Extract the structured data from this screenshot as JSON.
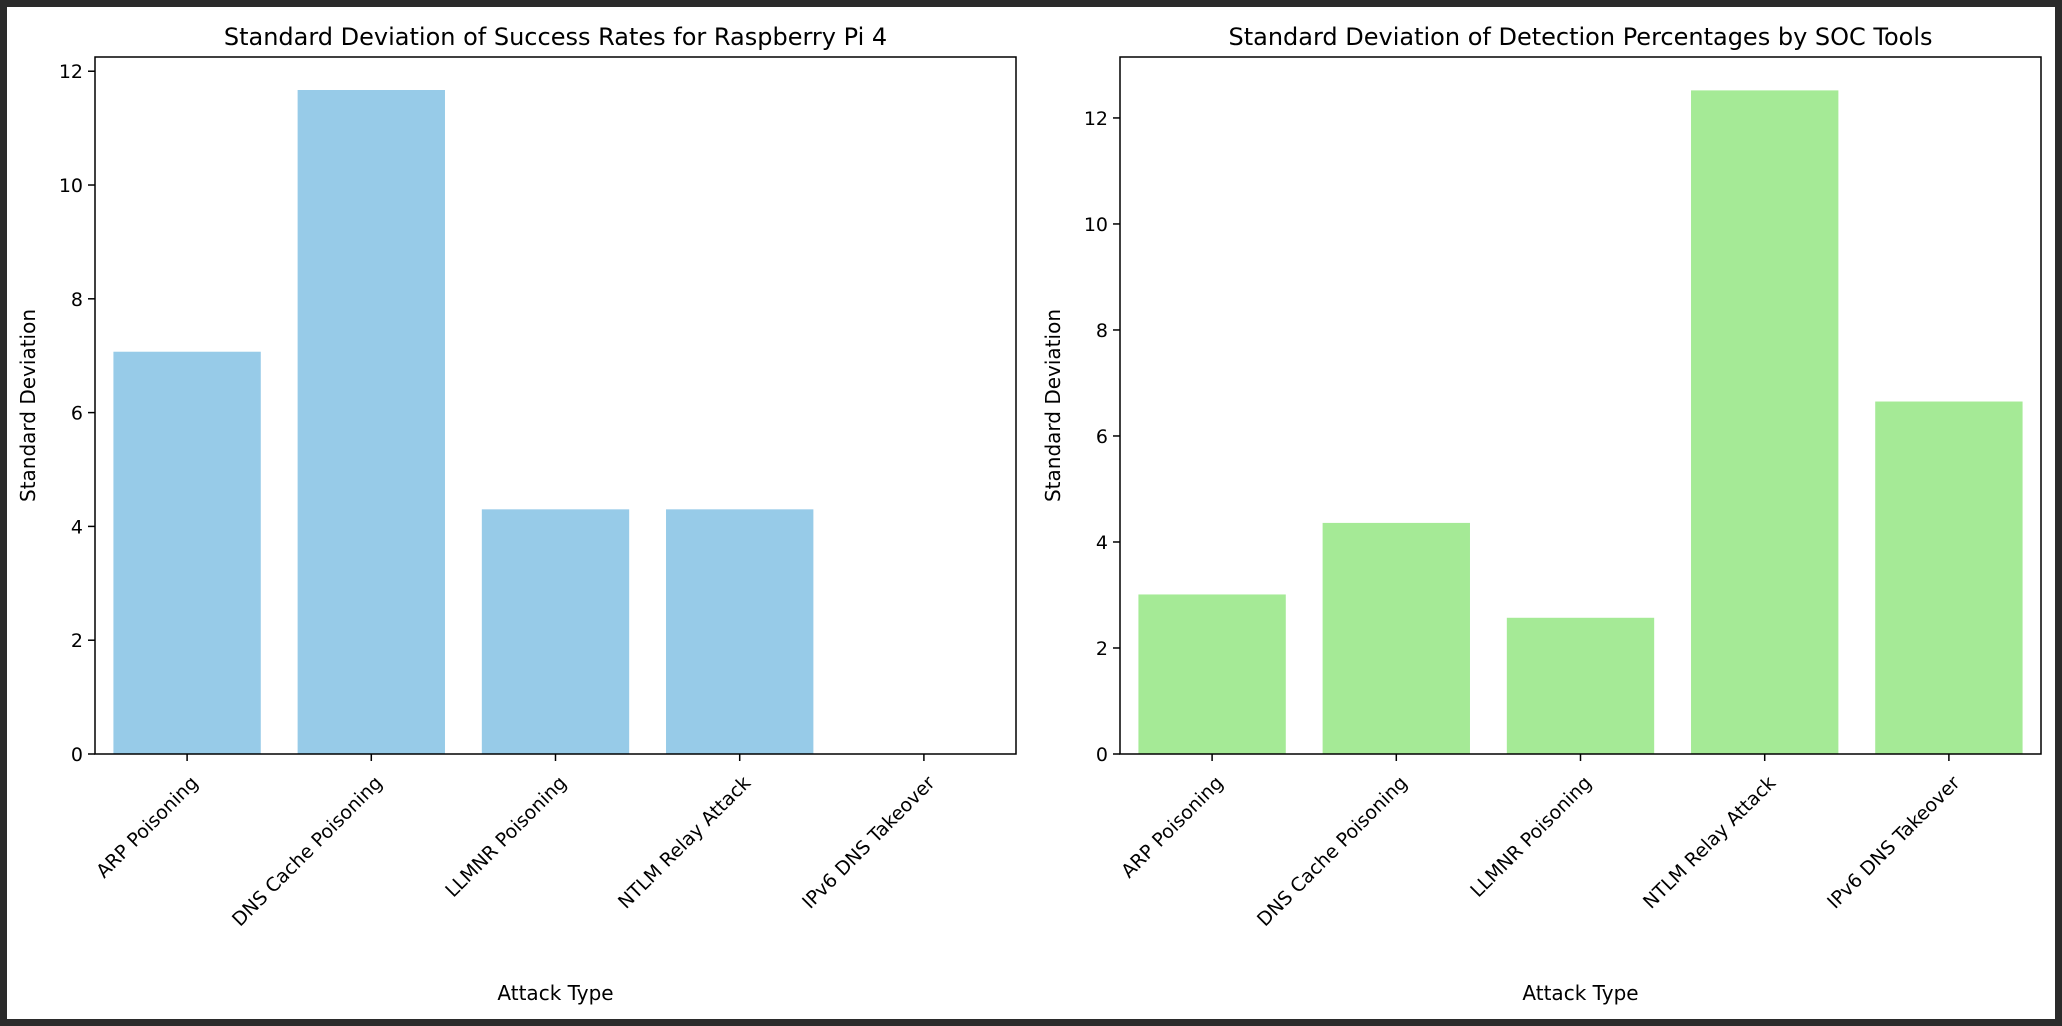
{
  "chart_data": [
    {
      "type": "bar",
      "title": "Standard Deviation of Success Rates for Raspberry Pi 4",
      "xlabel": "Attack Type",
      "ylabel": "Standard Deviation",
      "categories": [
        "ARP Poisoning",
        "DNS Cache Poisoning",
        "LLMNR Poisoning",
        "NTLM Relay Attack",
        "IPv6 DNS Takeover"
      ],
      "values": [
        7.07,
        11.67,
        4.3,
        4.3,
        0
      ],
      "yticks": [
        0,
        2,
        4,
        6,
        8,
        10,
        12
      ],
      "ylim": [
        0,
        12.25
      ],
      "color": "#97cbe8",
      "grid": false
    },
    {
      "type": "bar",
      "title": "Standard Deviation of Detection Percentages by SOC Tools",
      "xlabel": "Attack Type",
      "ylabel": "Standard Deviation",
      "categories": [
        "ARP Poisoning",
        "DNS Cache Poisoning",
        "LLMNR Poisoning",
        "NTLM Relay Attack",
        "IPv6 DNS Takeover"
      ],
      "values": [
        3.01,
        4.36,
        2.57,
        12.52,
        6.65
      ],
      "yticks": [
        0,
        2,
        4,
        6,
        8,
        10,
        12
      ],
      "ylim": [
        0,
        13.15
      ],
      "color": "#a5ea96",
      "grid": false
    }
  ]
}
